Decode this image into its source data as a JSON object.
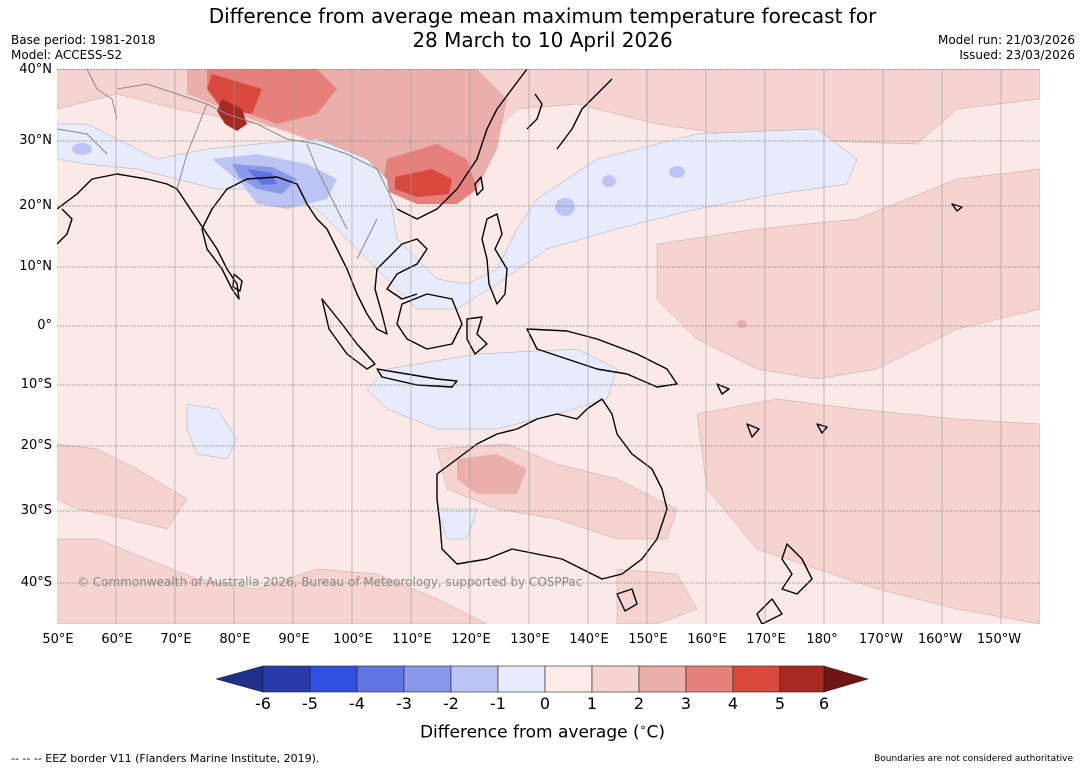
{
  "title": {
    "line1": "Difference from average mean maximum temperature forecast for",
    "line2": "28 March to 10 April 2026"
  },
  "meta": {
    "base_period": "Base period: 1981-2018",
    "model": "Model: ACCESS-S2",
    "model_run": "Model run: 21/03/2026",
    "issued": "Issued: 23/03/2026"
  },
  "lat_labels": [
    "40°N",
    "30°N",
    "20°N",
    "10°N",
    "0°",
    "10°S",
    "20°S",
    "30°S",
    "40°S"
  ],
  "lon_labels": [
    "50°E",
    "60°E",
    "70°E",
    "80°E",
    "90°E",
    "100°E",
    "110°E",
    "120°E",
    "130°E",
    "140°E",
    "150°E",
    "160°E",
    "170°E",
    "180°",
    "170°W",
    "160°W",
    "150°W"
  ],
  "copyright": "© Commonwealth of Australia 2026, Bureau of Meteorology, supported by COSPPac",
  "colorbar": {
    "ticks": [
      "-6",
      "-5",
      "-4",
      "-3",
      "-2",
      "-1",
      "0",
      "1",
      "2",
      "3",
      "4",
      "5",
      "6"
    ],
    "colors": [
      "#1f2f8c",
      "#2a3cad",
      "#3050df",
      "#6074e3",
      "#8a98ea",
      "#bcc4f3",
      "#e8ebfb",
      "#fcebe9",
      "#f4d3d1",
      "#eaaeab",
      "#e5807a",
      "#da4940",
      "#a92821",
      "#6e1712"
    ],
    "title": "Difference from average (°C)",
    "title_main": "Difference from average (",
    "title_unit_sup": "∘",
    "title_unit": "C)"
  },
  "footer": {
    "eez": "--  --  -- EEZ border V11 (Flanders Marine Institute, 2019).",
    "boundaries": "Boundaries are not considered authoritative"
  }
}
